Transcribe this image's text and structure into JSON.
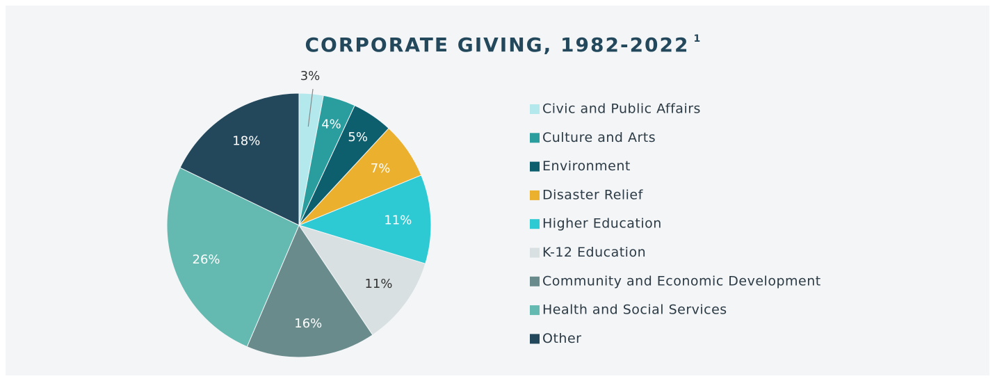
{
  "chart_data": {
    "type": "pie",
    "title": "CORPORATE GIVING, 1982-2022",
    "title_note": "1",
    "categories": [
      "Civic and Public Affairs",
      "Culture and Arts",
      "Environment",
      "Disaster Relief",
      "Higher Education",
      "K-12 Education",
      "Community and Economic Development",
      "Health and Social Services",
      "Other"
    ],
    "values": [
      3,
      4,
      5,
      7,
      11,
      11,
      16,
      26,
      18
    ],
    "value_labels": [
      "3%",
      "4%",
      "5%",
      "7%",
      "11%",
      "11%",
      "16%",
      "26%",
      "18%"
    ],
    "colors": [
      "#b3e8ec",
      "#2a9d9e",
      "#0e5f6e",
      "#ebb02e",
      "#2ecad3",
      "#d9e0e1",
      "#6a8b8c",
      "#64bab0",
      "#23485c"
    ],
    "legend": "right"
  }
}
